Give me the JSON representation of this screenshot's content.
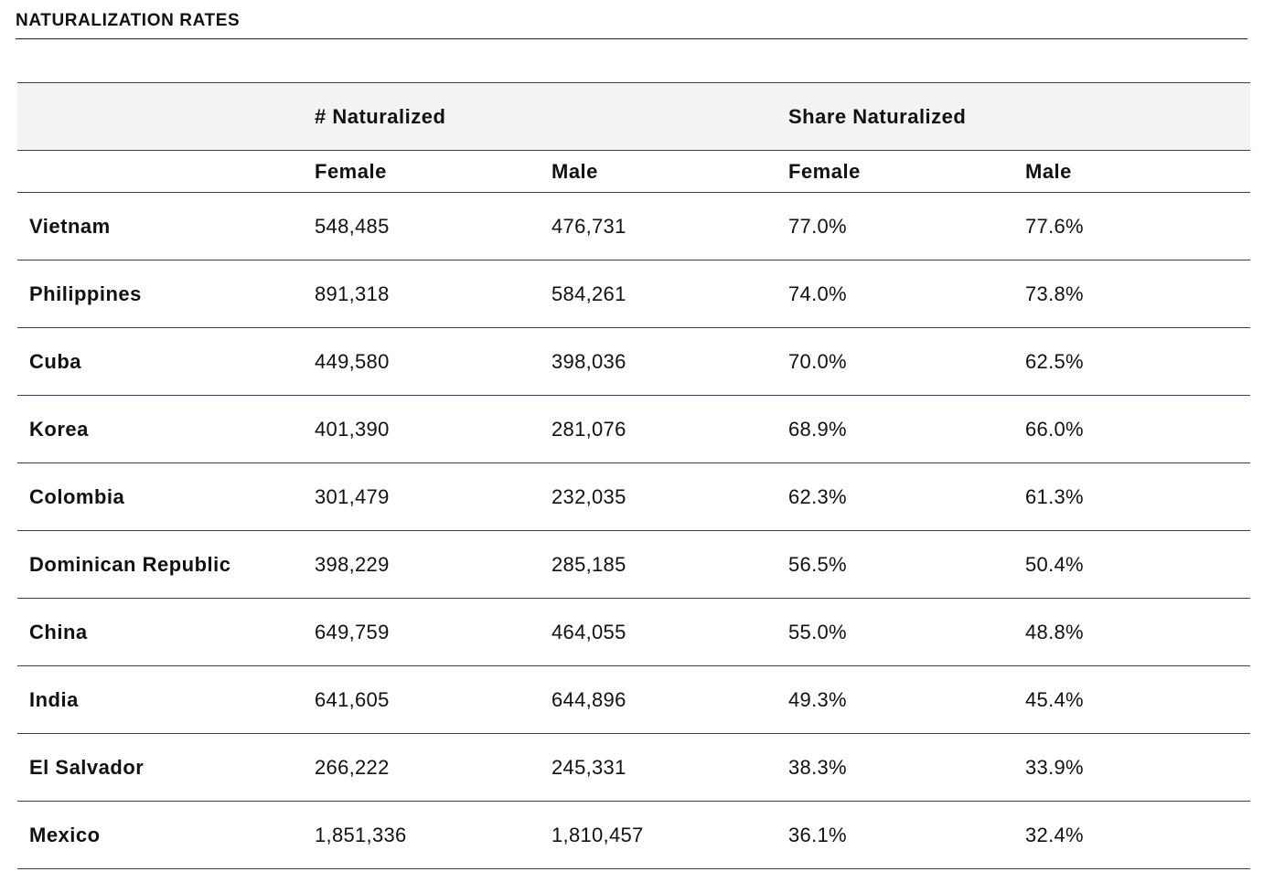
{
  "section_title": "NATURALIZATION RATES",
  "header": {
    "group_count_label": "# Naturalized",
    "group_share_label": "Share Naturalized",
    "sub_labels": [
      "Female",
      "Male",
      "Female",
      "Male"
    ]
  },
  "rows": [
    {
      "country": "Vietnam",
      "nat_female": "548,485",
      "nat_male": "476,731",
      "share_female": "77.0%",
      "share_male": "77.6%"
    },
    {
      "country": "Philippines",
      "nat_female": "891,318",
      "nat_male": "584,261",
      "share_female": "74.0%",
      "share_male": "73.8%"
    },
    {
      "country": "Cuba",
      "nat_female": "449,580",
      "nat_male": "398,036",
      "share_female": "70.0%",
      "share_male": "62.5%"
    },
    {
      "country": "Korea",
      "nat_female": "401,390",
      "nat_male": "281,076",
      "share_female": "68.9%",
      "share_male": "66.0%"
    },
    {
      "country": "Colombia",
      "nat_female": "301,479",
      "nat_male": "232,035",
      "share_female": "62.3%",
      "share_male": "61.3%"
    },
    {
      "country": "Dominican Republic",
      "nat_female": "398,229",
      "nat_male": "285,185",
      "share_female": "56.5%",
      "share_male": "50.4%"
    },
    {
      "country": "China",
      "nat_female": "649,759",
      "nat_male": "464,055",
      "share_female": "55.0%",
      "share_male": "48.8%"
    },
    {
      "country": "India",
      "nat_female": "641,605",
      "nat_male": "644,896",
      "share_female": "49.3%",
      "share_male": "45.4%"
    },
    {
      "country": "El Salvador",
      "nat_female": "266,222",
      "nat_male": "245,331",
      "share_female": "38.3%",
      "share_male": "33.9%"
    },
    {
      "country": "Mexico",
      "nat_female": "1,851,336",
      "nat_male": "1,810,457",
      "share_female": "36.1%",
      "share_male": "32.4%"
    }
  ]
}
